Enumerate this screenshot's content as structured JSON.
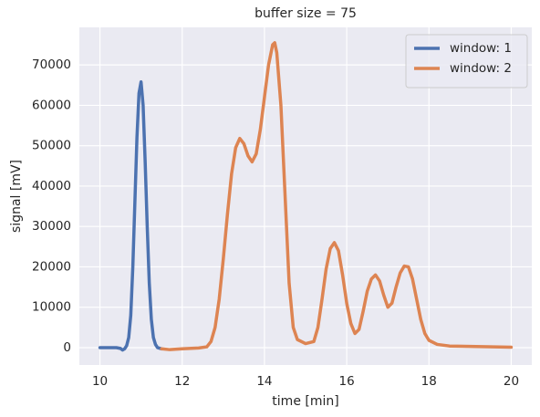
{
  "chart_data": {
    "type": "line",
    "title": "buffer size = 75",
    "xlabel": "time [min]",
    "ylabel": "signal [mV]",
    "xlim": [
      9.5,
      20.5
    ],
    "ylim": [
      -4300,
      79300
    ],
    "xticks": [
      10,
      12,
      14,
      16,
      18,
      20
    ],
    "yticks": [
      0,
      10000,
      20000,
      30000,
      40000,
      50000,
      60000,
      70000
    ],
    "grid": true,
    "legend": "upper right",
    "series": [
      {
        "name": "window: 1",
        "color": "#4c72b0",
        "x": [
          10,
          10.2,
          10.4,
          10.5,
          10.55,
          10.6,
          10.65,
          10.7,
          10.75,
          10.8,
          10.85,
          10.9,
          10.95,
          11.0,
          11.05,
          11.1,
          11.15,
          11.2,
          11.25,
          11.3,
          11.35,
          11.4,
          11.5
        ],
        "values": [
          0,
          0,
          0,
          -200,
          -600,
          -300,
          500,
          2500,
          8000,
          20000,
          36000,
          52000,
          63000,
          65800,
          60000,
          46000,
          30000,
          16000,
          7000,
          2500,
          800,
          0,
          -300
        ]
      },
      {
        "name": "window: 2",
        "color": "#dd8452",
        "x": [
          11.5,
          11.7,
          12,
          12.4,
          12.6,
          12.7,
          12.8,
          12.9,
          13.0,
          13.1,
          13.2,
          13.3,
          13.4,
          13.5,
          13.6,
          13.7,
          13.8,
          13.9,
          14.0,
          14.1,
          14.2,
          14.25,
          14.3,
          14.4,
          14.5,
          14.6,
          14.7,
          14.8,
          15.0,
          15.2,
          15.3,
          15.4,
          15.5,
          15.6,
          15.7,
          15.8,
          15.9,
          16.0,
          16.1,
          16.2,
          16.3,
          16.4,
          16.5,
          16.6,
          16.7,
          16.8,
          16.9,
          17.0,
          17.1,
          17.2,
          17.3,
          17.4,
          17.5,
          17.6,
          17.7,
          17.8,
          17.9,
          18.0,
          18.2,
          18.5,
          19,
          20
        ],
        "values": [
          -300,
          -500,
          -300,
          -100,
          200,
          1500,
          5000,
          12000,
          22000,
          33000,
          43000,
          49500,
          51800,
          50500,
          47500,
          46000,
          48000,
          54000,
          62000,
          70000,
          75000,
          75500,
          73000,
          60000,
          38000,
          16000,
          5000,
          2000,
          1000,
          1500,
          5000,
          12000,
          19500,
          24500,
          26000,
          24000,
          18000,
          11000,
          6000,
          3500,
          4500,
          9000,
          14000,
          17000,
          18000,
          16500,
          13000,
          10000,
          11000,
          15000,
          18500,
          20200,
          20000,
          17000,
          12000,
          7000,
          3500,
          1800,
          800,
          400,
          300,
          100
        ]
      }
    ]
  }
}
